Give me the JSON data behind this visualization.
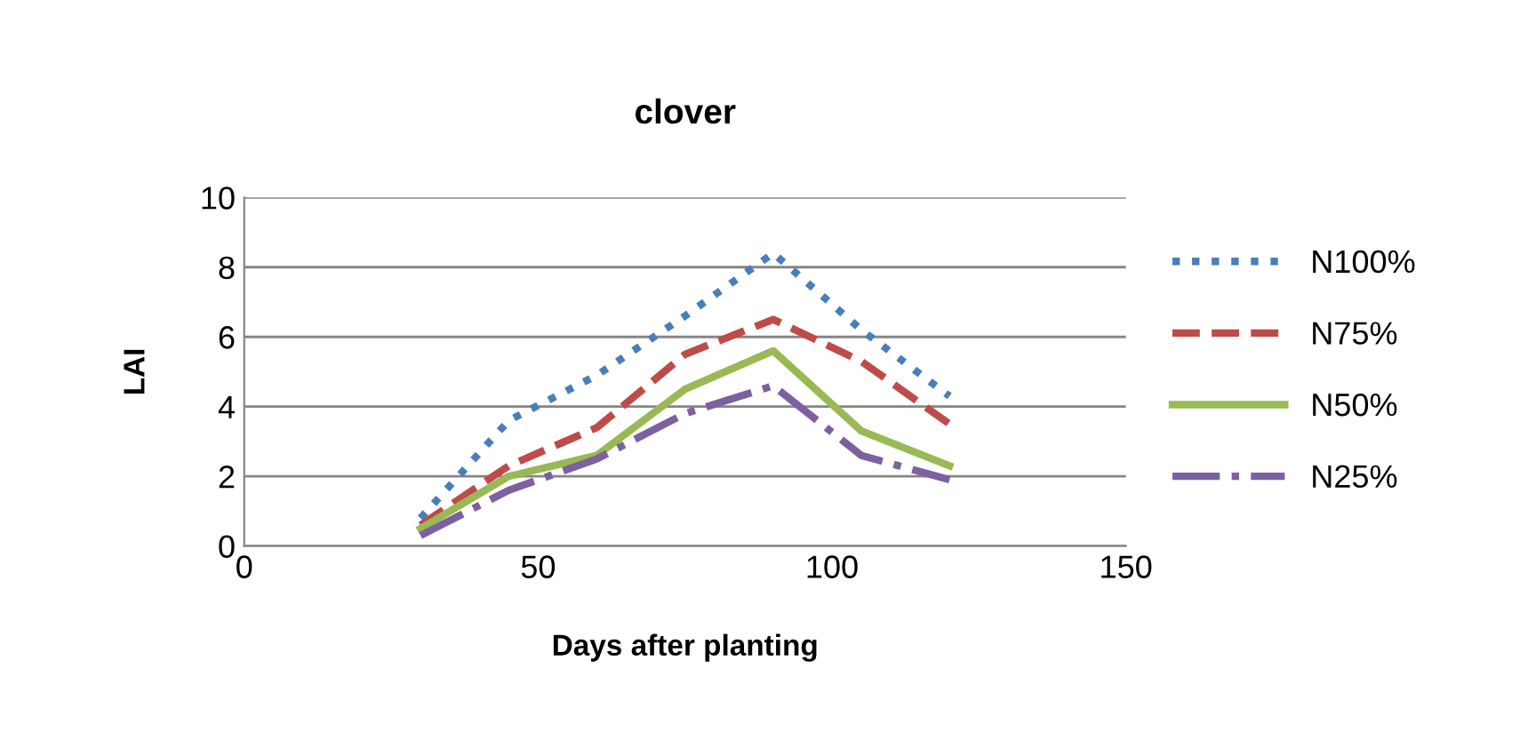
{
  "chart_data": {
    "type": "line",
    "title": "clover",
    "xlabel": "Days after planting",
    "ylabel": "LAI",
    "x": [
      30,
      45,
      60,
      75,
      90,
      105,
      120
    ],
    "series": [
      {
        "name": "N100%",
        "color": "#4a7ebb",
        "line_style": "dotted",
        "values": [
          0.8,
          3.6,
          4.9,
          6.6,
          8.4,
          6.2,
          4.3
        ]
      },
      {
        "name": "N75%",
        "color": "#be4b48",
        "line_style": "dashed",
        "values": [
          0.6,
          2.3,
          3.4,
          5.5,
          6.5,
          5.3,
          3.5
        ]
      },
      {
        "name": "N50%",
        "color": "#98b954",
        "line_style": "solid",
        "values": [
          0.5,
          2.0,
          2.6,
          4.5,
          5.6,
          3.3,
          2.3
        ]
      },
      {
        "name": "N25%",
        "color": "#7d60a0",
        "line_style": "dashdot",
        "values": [
          0.3,
          1.6,
          2.5,
          3.8,
          4.6,
          2.6,
          1.9
        ]
      }
    ],
    "xlim": [
      0,
      150
    ],
    "xticks": [
      0,
      50,
      100,
      150
    ],
    "ylim": [
      0,
      10
    ],
    "yticks": [
      0,
      2,
      4,
      6,
      8,
      10
    ],
    "grid": "y",
    "legend": "right",
    "marker": "none"
  }
}
